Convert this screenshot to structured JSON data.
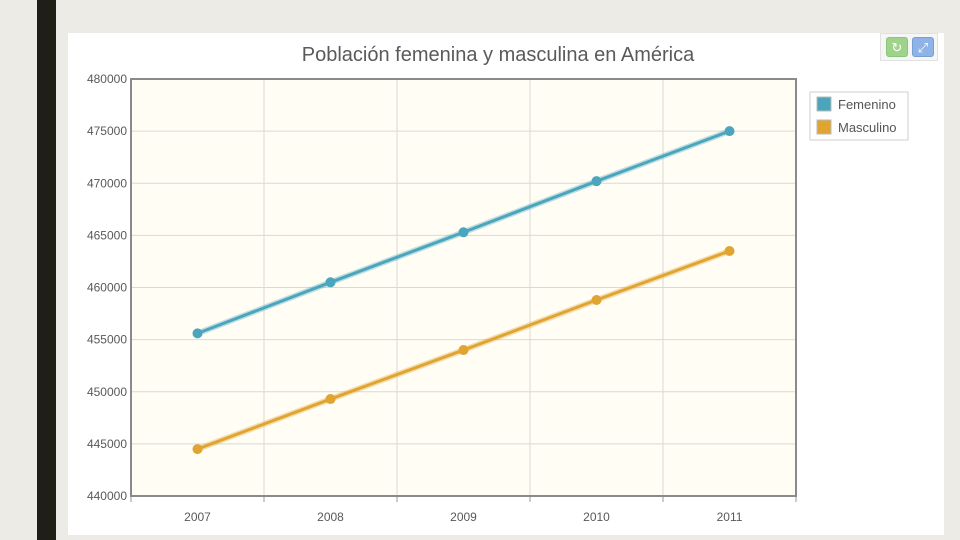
{
  "chart_data": {
    "type": "line",
    "title": "Población femenina y masculina en América",
    "xlabel": "",
    "ylabel": "",
    "categories": [
      "2007",
      "2008",
      "2009",
      "2010",
      "2011"
    ],
    "y_ticks": [
      "440000",
      "445000",
      "450000",
      "455000",
      "460000",
      "465000",
      "470000",
      "475000",
      "480000"
    ],
    "ylim": [
      440000,
      480000
    ],
    "grid": true,
    "legend_position": "top-right",
    "series": [
      {
        "name": "Femenino",
        "color": "#4aa5bd",
        "values": [
          455600,
          460500,
          465300,
          470200,
          475000
        ]
      },
      {
        "name": "Masculino",
        "color": "#e0a431",
        "values": [
          444500,
          449300,
          454000,
          458800,
          463500
        ]
      }
    ]
  },
  "toolbar": {
    "refresh_icon": "refresh-icon",
    "expand_icon": "expand-icon"
  }
}
